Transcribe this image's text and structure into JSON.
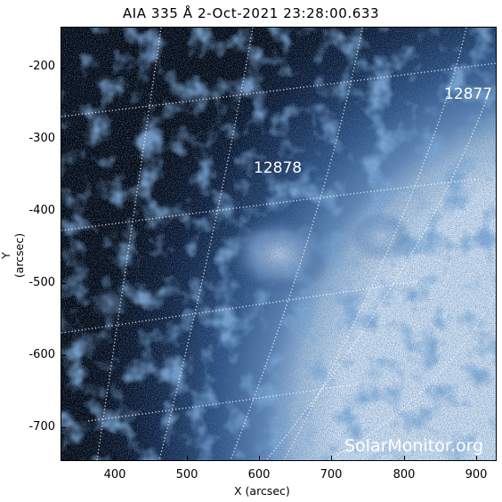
{
  "title": "AIA 335 Å  2-Oct-2021 23:28:00.633",
  "axes": {
    "ylabel": "Y (arcsec)",
    "xlabel": "X (arcsec)",
    "yticks": [
      "-200",
      "-300",
      "-400",
      "-500",
      "-600",
      "-700"
    ],
    "xticks": [
      "400",
      "500",
      "600",
      "700",
      "800",
      "900"
    ]
  },
  "regions": [
    {
      "label": "12877"
    },
    {
      "label": "12878"
    }
  ],
  "watermark": "SolarMonitor.org",
  "colors": {
    "background": "#03070f",
    "emission": "#3f6da6",
    "limb": "#cfe0f2",
    "grid": "#ffffff"
  }
}
